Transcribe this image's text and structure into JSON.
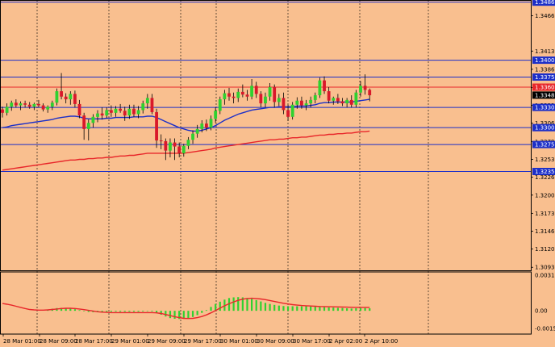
{
  "colors": {
    "background": "#f9bf8f",
    "grid": "#000000",
    "bull_candle": "#2fd12f",
    "bear_candle": "#d9182a",
    "level_line": "#1c2fc8",
    "resistance_line": "#e8262a",
    "ma_fast": "#1c2fc8",
    "ma_slow": "#e8262a",
    "macd_hist": "#2fd12f",
    "macd_signal": "#e8262a",
    "label_blue_bg": "#1c2fc8",
    "label_red_bg": "#e8262a",
    "label_black_bg": "#000000"
  },
  "price_axis": {
    "ticks": [
      "1.34660",
      "1.34135",
      "1.33865",
      "1.33595",
      "1.33330",
      "1.33065",
      "1.32795",
      "1.32530",
      "1.32265",
      "1.32000",
      "1.31730",
      "1.31465",
      "1.31200",
      "1.30930"
    ],
    "levels": [
      {
        "label": "1.34860",
        "price": 1.3486,
        "kind": "blue"
      },
      {
        "label": "1.34000",
        "price": 1.34,
        "kind": "blue"
      },
      {
        "label": "1.33750",
        "price": 1.3375,
        "kind": "blue"
      },
      {
        "label": "1.33600",
        "price": 1.336,
        "kind": "red"
      },
      {
        "label": "1.33482",
        "price": 1.33482,
        "kind": "current"
      },
      {
        "label": "1.33300",
        "price": 1.333,
        "kind": "blue"
      },
      {
        "label": "1.33000",
        "price": 1.33,
        "kind": "blue"
      },
      {
        "label": "1.32750",
        "price": 1.3275,
        "kind": "blue"
      },
      {
        "label": "1.32350",
        "price": 1.3235,
        "kind": "blue"
      }
    ]
  },
  "indicator_axis": {
    "ticks": [
      "0.003126",
      "0.00",
      "-0.00156"
    ]
  },
  "time_axis": {
    "labels": [
      "28 Mar 01:00",
      "28 Mar 09:00",
      "28 Mar 17:00",
      "29 Mar 01:00",
      "29 Mar 09:00",
      "29 Mar 17:00",
      "30 Mar 01:00",
      "30 Mar 09:00",
      "30 Mar 17:00",
      "2 Apr 02:00",
      "2 Apr 10:00"
    ]
  },
  "chart_data": {
    "type": "candlestick",
    "candles": [
      {
        "o": 1.3327,
        "h": 1.3331,
        "l": 1.3315,
        "c": 1.3322
      },
      {
        "o": 1.3322,
        "h": 1.3336,
        "l": 1.3318,
        "c": 1.3331
      },
      {
        "o": 1.3331,
        "h": 1.334,
        "l": 1.3325,
        "c": 1.3337
      },
      {
        "o": 1.3337,
        "h": 1.3342,
        "l": 1.333,
        "c": 1.3333
      },
      {
        "o": 1.3333,
        "h": 1.3339,
        "l": 1.3326,
        "c": 1.3336
      },
      {
        "o": 1.3336,
        "h": 1.334,
        "l": 1.333,
        "c": 1.3334
      },
      {
        "o": 1.3334,
        "h": 1.3338,
        "l": 1.3328,
        "c": 1.3331
      },
      {
        "o": 1.3331,
        "h": 1.3337,
        "l": 1.3326,
        "c": 1.3335
      },
      {
        "o": 1.3335,
        "h": 1.3341,
        "l": 1.333,
        "c": 1.3333
      },
      {
        "o": 1.3333,
        "h": 1.3336,
        "l": 1.3324,
        "c": 1.3327
      },
      {
        "o": 1.3327,
        "h": 1.3333,
        "l": 1.3322,
        "c": 1.3331
      },
      {
        "o": 1.3331,
        "h": 1.334,
        "l": 1.3326,
        "c": 1.3337
      },
      {
        "o": 1.3337,
        "h": 1.3358,
        "l": 1.3333,
        "c": 1.3354
      },
      {
        "o": 1.3354,
        "h": 1.3381,
        "l": 1.3342,
        "c": 1.3346
      },
      {
        "o": 1.3346,
        "h": 1.3351,
        "l": 1.3336,
        "c": 1.3342
      },
      {
        "o": 1.3342,
        "h": 1.3354,
        "l": 1.3334,
        "c": 1.335
      },
      {
        "o": 1.335,
        "h": 1.3355,
        "l": 1.333,
        "c": 1.3335
      },
      {
        "o": 1.3335,
        "h": 1.3341,
        "l": 1.3314,
        "c": 1.3318
      },
      {
        "o": 1.3318,
        "h": 1.3322,
        "l": 1.3282,
        "c": 1.3298
      },
      {
        "o": 1.3298,
        "h": 1.3312,
        "l": 1.3281,
        "c": 1.3307
      },
      {
        "o": 1.3307,
        "h": 1.332,
        "l": 1.33,
        "c": 1.3316
      },
      {
        "o": 1.3316,
        "h": 1.3326,
        "l": 1.3308,
        "c": 1.3321
      },
      {
        "o": 1.3321,
        "h": 1.333,
        "l": 1.3312,
        "c": 1.3318
      },
      {
        "o": 1.3318,
        "h": 1.333,
        "l": 1.3314,
        "c": 1.3326
      },
      {
        "o": 1.3326,
        "h": 1.3333,
        "l": 1.3316,
        "c": 1.3322
      },
      {
        "o": 1.3322,
        "h": 1.3332,
        "l": 1.3316,
        "c": 1.3328
      },
      {
        "o": 1.3328,
        "h": 1.3335,
        "l": 1.3322,
        "c": 1.3325
      },
      {
        "o": 1.3325,
        "h": 1.3331,
        "l": 1.331,
        "c": 1.3318
      },
      {
        "o": 1.3318,
        "h": 1.3334,
        "l": 1.3313,
        "c": 1.3328
      },
      {
        "o": 1.3328,
        "h": 1.3334,
        "l": 1.3316,
        "c": 1.332
      },
      {
        "o": 1.332,
        "h": 1.3332,
        "l": 1.3314,
        "c": 1.3326
      },
      {
        "o": 1.3326,
        "h": 1.334,
        "l": 1.3321,
        "c": 1.3336
      },
      {
        "o": 1.3336,
        "h": 1.335,
        "l": 1.3328,
        "c": 1.3344
      },
      {
        "o": 1.3344,
        "h": 1.335,
        "l": 1.332,
        "c": 1.3323
      },
      {
        "o": 1.3323,
        "h": 1.3328,
        "l": 1.327,
        "c": 1.3281
      },
      {
        "o": 1.3281,
        "h": 1.329,
        "l": 1.3268,
        "c": 1.328
      },
      {
        "o": 1.328,
        "h": 1.3284,
        "l": 1.3252,
        "c": 1.3266
      },
      {
        "o": 1.3266,
        "h": 1.3284,
        "l": 1.3256,
        "c": 1.3278
      },
      {
        "o": 1.3278,
        "h": 1.3284,
        "l": 1.3252,
        "c": 1.3272
      },
      {
        "o": 1.3272,
        "h": 1.3278,
        "l": 1.3256,
        "c": 1.3262
      },
      {
        "o": 1.3262,
        "h": 1.3276,
        "l": 1.3257,
        "c": 1.3273
      },
      {
        "o": 1.3273,
        "h": 1.3286,
        "l": 1.3268,
        "c": 1.3282
      },
      {
        "o": 1.3282,
        "h": 1.3296,
        "l": 1.3276,
        "c": 1.3291
      },
      {
        "o": 1.3291,
        "h": 1.3304,
        "l": 1.3285,
        "c": 1.3298
      },
      {
        "o": 1.3298,
        "h": 1.3311,
        "l": 1.3293,
        "c": 1.3306
      },
      {
        "o": 1.3306,
        "h": 1.3312,
        "l": 1.3295,
        "c": 1.33
      },
      {
        "o": 1.33,
        "h": 1.3318,
        "l": 1.3296,
        "c": 1.3313
      },
      {
        "o": 1.3313,
        "h": 1.333,
        "l": 1.3307,
        "c": 1.3325
      },
      {
        "o": 1.3325,
        "h": 1.3346,
        "l": 1.332,
        "c": 1.3342
      },
      {
        "o": 1.3342,
        "h": 1.3356,
        "l": 1.3334,
        "c": 1.3351
      },
      {
        "o": 1.3351,
        "h": 1.3359,
        "l": 1.334,
        "c": 1.3346
      },
      {
        "o": 1.3346,
        "h": 1.3352,
        "l": 1.3336,
        "c": 1.3344
      },
      {
        "o": 1.3344,
        "h": 1.3358,
        "l": 1.3338,
        "c": 1.3353
      },
      {
        "o": 1.3353,
        "h": 1.3364,
        "l": 1.3345,
        "c": 1.3349
      },
      {
        "o": 1.3349,
        "h": 1.3356,
        "l": 1.334,
        "c": 1.3346
      },
      {
        "o": 1.3346,
        "h": 1.3372,
        "l": 1.3342,
        "c": 1.3362
      },
      {
        "o": 1.3362,
        "h": 1.3368,
        "l": 1.3344,
        "c": 1.335
      },
      {
        "o": 1.335,
        "h": 1.3354,
        "l": 1.333,
        "c": 1.3336
      },
      {
        "o": 1.3336,
        "h": 1.3352,
        "l": 1.333,
        "c": 1.3346
      },
      {
        "o": 1.3346,
        "h": 1.3366,
        "l": 1.334,
        "c": 1.336
      },
      {
        "o": 1.336,
        "h": 1.3364,
        "l": 1.333,
        "c": 1.3338
      },
      {
        "o": 1.3338,
        "h": 1.335,
        "l": 1.3332,
        "c": 1.3344
      },
      {
        "o": 1.3344,
        "h": 1.3352,
        "l": 1.332,
        "c": 1.3326
      },
      {
        "o": 1.3326,
        "h": 1.3334,
        "l": 1.331,
        "c": 1.3316
      },
      {
        "o": 1.3316,
        "h": 1.3338,
        "l": 1.3312,
        "c": 1.3334
      },
      {
        "o": 1.3334,
        "h": 1.3345,
        "l": 1.3328,
        "c": 1.334
      },
      {
        "o": 1.334,
        "h": 1.3346,
        "l": 1.3328,
        "c": 1.3333
      },
      {
        "o": 1.3333,
        "h": 1.3341,
        "l": 1.3326,
        "c": 1.3336
      },
      {
        "o": 1.3336,
        "h": 1.3346,
        "l": 1.333,
        "c": 1.3341
      },
      {
        "o": 1.3341,
        "h": 1.3352,
        "l": 1.3336,
        "c": 1.3348
      },
      {
        "o": 1.3348,
        "h": 1.3374,
        "l": 1.3344,
        "c": 1.337
      },
      {
        "o": 1.337,
        "h": 1.3376,
        "l": 1.335,
        "c": 1.3354
      },
      {
        "o": 1.3354,
        "h": 1.336,
        "l": 1.3336,
        "c": 1.334
      },
      {
        "o": 1.334,
        "h": 1.3346,
        "l": 1.3334,
        "c": 1.3344
      },
      {
        "o": 1.3344,
        "h": 1.335,
        "l": 1.3335,
        "c": 1.3339
      },
      {
        "o": 1.3339,
        "h": 1.3344,
        "l": 1.3332,
        "c": 1.3336
      },
      {
        "o": 1.3336,
        "h": 1.3344,
        "l": 1.333,
        "c": 1.3341
      },
      {
        "o": 1.3341,
        "h": 1.3348,
        "l": 1.333,
        "c": 1.3334
      },
      {
        "o": 1.3334,
        "h": 1.3356,
        "l": 1.333,
        "c": 1.3352
      },
      {
        "o": 1.3352,
        "h": 1.3369,
        "l": 1.3346,
        "c": 1.3362
      },
      {
        "o": 1.3362,
        "h": 1.3379,
        "l": 1.3349,
        "c": 1.3356
      },
      {
        "o": 1.3356,
        "h": 1.3358,
        "l": 1.3339,
        "c": 1.3348
      }
    ],
    "ma_fast": [
      1.33,
      1.3301,
      1.3303,
      1.3304,
      1.3305,
      1.3306,
      1.3307,
      1.3308,
      1.3309,
      1.331,
      1.3311,
      1.3312,
      1.3314,
      1.3315,
      1.3316,
      1.3317,
      1.3317,
      1.3316,
      1.3314,
      1.3313,
      1.3313,
      1.3313,
      1.3313,
      1.3314,
      1.3314,
      1.3315,
      1.3315,
      1.3315,
      1.3315,
      1.3316,
      1.3316,
      1.3316,
      1.3317,
      1.3317,
      1.3315,
      1.3312,
      1.3309,
      1.3306,
      1.3303,
      1.33,
      1.3298,
      1.3296,
      1.3295,
      1.3295,
      1.3296,
      1.3298,
      1.33,
      1.3303,
      1.3307,
      1.3311,
      1.3314,
      1.3317,
      1.332,
      1.3322,
      1.3324,
      1.3326,
      1.3327,
      1.3328,
      1.3329,
      1.333,
      1.333,
      1.3331,
      1.3331,
      1.3331,
      1.3331,
      1.3332,
      1.3332,
      1.3332,
      1.3333,
      1.3334,
      1.3336,
      1.3337,
      1.3337,
      1.3338,
      1.3338,
      1.3338,
      1.3338,
      1.3338,
      1.3339,
      1.334,
      1.3341,
      1.3342
    ],
    "ma_slow": [
      1.3237,
      1.3238,
      1.3239,
      1.324,
      1.3241,
      1.3242,
      1.3243,
      1.3244,
      1.3245,
      1.3246,
      1.3247,
      1.3248,
      1.3249,
      1.325,
      1.3251,
      1.3252,
      1.3252,
      1.3253,
      1.3253,
      1.3254,
      1.3254,
      1.3255,
      1.3255,
      1.3256,
      1.3256,
      1.3257,
      1.3258,
      1.3258,
      1.3259,
      1.3259,
      1.326,
      1.3261,
      1.3262,
      1.3262,
      1.3262,
      1.3262,
      1.3262,
      1.3262,
      1.3262,
      1.3262,
      1.3262,
      1.3263,
      1.3264,
      1.3265,
      1.3266,
      1.3267,
      1.3268,
      1.327,
      1.3271,
      1.3272,
      1.3273,
      1.3274,
      1.3275,
      1.3276,
      1.3277,
      1.3278,
      1.3279,
      1.328,
      1.3281,
      1.3282,
      1.3282,
      1.3283,
      1.3283,
      1.3284,
      1.3285,
      1.3285,
      1.3286,
      1.3286,
      1.3287,
      1.3288,
      1.3289,
      1.3289,
      1.329,
      1.329,
      1.3291,
      1.3291,
      1.3292,
      1.3292,
      1.3293,
      1.3294,
      1.3294,
      1.3295
    ],
    "macd_hist": [
      0,
      0,
      0,
      0,
      0,
      0,
      0,
      0,
      0,
      0,
      0.00012,
      0.00018,
      0.00024,
      0.00026,
      0.00024,
      0.0002,
      0.00014,
      6e-05,
      -4e-05,
      -0.0001,
      -0.00012,
      -0.00012,
      -0.0001,
      -8e-05,
      -8e-05,
      -7e-05,
      -8e-05,
      -8e-05,
      -8e-05,
      -8e-05,
      -8e-05,
      -6e-05,
      -4e-05,
      -6e-05,
      -0.00016,
      -0.00034,
      -0.0005,
      -0.00064,
      -0.0007,
      -0.00072,
      -0.0007,
      -0.00064,
      -0.00054,
      -0.00038,
      -0.00018,
      6e-05,
      0.00034,
      0.0006,
      0.0008,
      0.00098,
      0.00112,
      0.00118,
      0.0012,
      0.00118,
      0.00112,
      0.00104,
      0.00094,
      0.00082,
      0.0007,
      0.0006,
      0.00052,
      0.00046,
      0.00042,
      0.0004,
      0.0004,
      0.0004,
      0.0004,
      0.0004,
      0.00038,
      0.00036,
      0.00034,
      0.00032,
      0.0003,
      0.00028,
      0.00026,
      0.00024,
      0.00022,
      0.0002,
      0.00022,
      0.00024,
      0.00024,
      0.00022
    ],
    "macd_signal": [
      0.00064,
      0.00058,
      0.0005,
      0.0004,
      0.0003,
      0.0002,
      0.00012,
      8e-05,
      6e-05,
      6e-05,
      8e-05,
      0.00012,
      0.00016,
      0.0002,
      0.00022,
      0.00022,
      0.0002,
      0.00016,
      0.0001,
      4e-05,
      -2e-05,
      -8e-05,
      -0.00012,
      -0.00014,
      -0.00016,
      -0.00016,
      -0.00016,
      -0.00016,
      -0.00016,
      -0.00016,
      -0.00016,
      -0.00016,
      -0.00016,
      -0.00016,
      -0.00018,
      -0.00024,
      -0.00032,
      -0.00042,
      -0.00052,
      -0.0006,
      -0.00066,
      -0.00068,
      -0.00066,
      -0.0006,
      -0.0005,
      -0.00036,
      -0.00018,
      2e-05,
      0.00024,
      0.00044,
      0.00062,
      0.00078,
      0.00092,
      0.00102,
      0.00108,
      0.0011,
      0.00108,
      0.00104,
      0.00098,
      0.0009,
      0.00082,
      0.00074,
      0.00066,
      0.0006,
      0.00054,
      0.0005,
      0.00046,
      0.00044,
      0.00042,
      0.0004,
      0.00038,
      0.00037,
      0.00036,
      0.00035,
      0.00034,
      0.00033,
      0.00032,
      0.00031,
      0.0003,
      0.0003,
      0.0003,
      0.0003
    ]
  }
}
